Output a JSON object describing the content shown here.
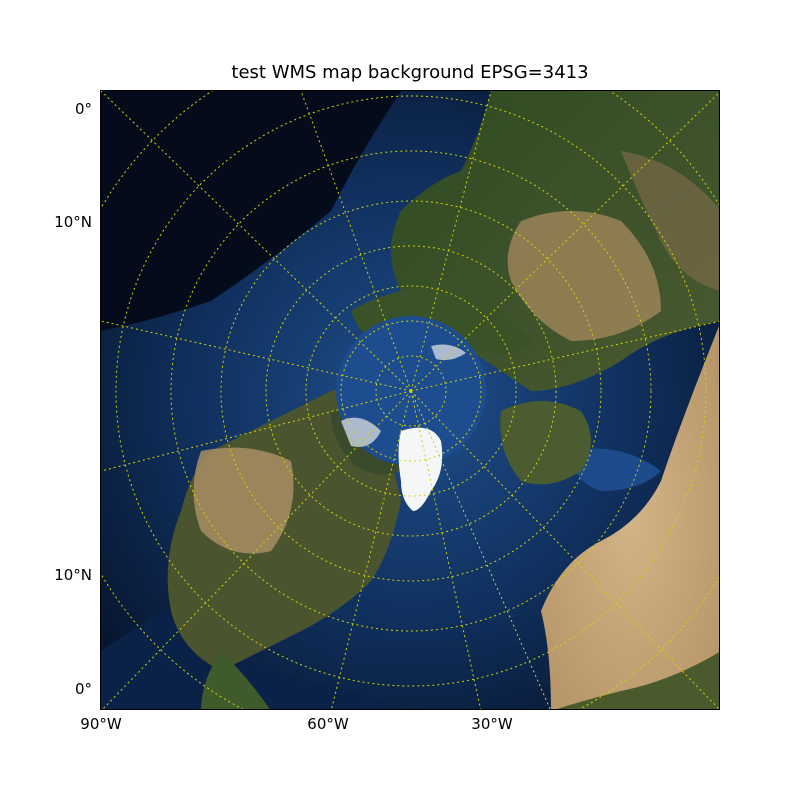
{
  "title": "test WMS map background EPSG=3413",
  "map": {
    "projection": "EPSG=3413",
    "background": "WMS satellite imagery",
    "graticule_color": "#d4d400",
    "coastline_color": "#c8c8c8"
  },
  "left_labels": [
    {
      "text": "0°"
    },
    {
      "text": "10°N"
    },
    {
      "text": "10°N"
    },
    {
      "text": "0°"
    }
  ],
  "bottom_labels": [
    {
      "text": "90°W"
    },
    {
      "text": "60°W"
    },
    {
      "text": "30°W"
    }
  ]
}
